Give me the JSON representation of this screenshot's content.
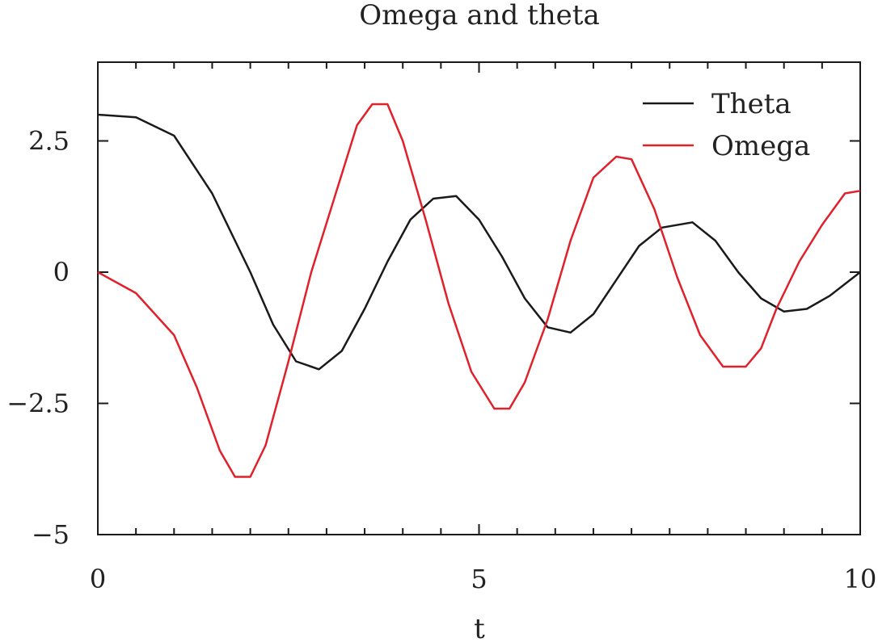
{
  "chart_data": {
    "type": "line",
    "title": "Omega and theta",
    "xlabel": "t",
    "ylabel": "",
    "xlim": [
      0,
      10
    ],
    "ylim": [
      -5,
      4
    ],
    "xticks": [
      0,
      5,
      10
    ],
    "xtick_labels": [
      "0",
      "5",
      "10"
    ],
    "yticks": [
      -5,
      -2.5,
      0,
      2.5
    ],
    "ytick_labels": [
      "−5",
      "−2.5",
      "0",
      "2.5"
    ],
    "grid": false,
    "legend_position": "top-right",
    "series": [
      {
        "name": "Theta",
        "color": "#1a1a1a",
        "x": [
          0,
          0.5,
          1.0,
          1.5,
          1.8,
          2.0,
          2.3,
          2.6,
          2.9,
          3.2,
          3.5,
          3.8,
          4.1,
          4.4,
          4.7,
          5.0,
          5.3,
          5.6,
          5.9,
          6.2,
          6.5,
          6.8,
          7.1,
          7.4,
          7.8,
          8.1,
          8.4,
          8.7,
          9.0,
          9.3,
          9.6,
          10.0
        ],
        "values": [
          3.0,
          2.95,
          2.6,
          1.5,
          0.6,
          0.0,
          -1.0,
          -1.7,
          -1.85,
          -1.5,
          -0.7,
          0.2,
          1.0,
          1.4,
          1.45,
          1.0,
          0.3,
          -0.5,
          -1.05,
          -1.15,
          -0.8,
          -0.15,
          0.5,
          0.85,
          0.95,
          0.6,
          0.0,
          -0.5,
          -0.75,
          -0.7,
          -0.45,
          0.0
        ]
      },
      {
        "name": "Omega",
        "color": "#e0202a",
        "x": [
          0,
          0.5,
          1.0,
          1.3,
          1.6,
          1.8,
          2.0,
          2.2,
          2.5,
          2.8,
          3.1,
          3.4,
          3.6,
          3.8,
          4.0,
          4.3,
          4.6,
          4.9,
          5.2,
          5.4,
          5.6,
          5.9,
          6.2,
          6.5,
          6.8,
          7.0,
          7.3,
          7.6,
          7.9,
          8.2,
          8.5,
          8.7,
          8.9,
          9.2,
          9.5,
          9.8,
          10.0
        ],
        "values": [
          0.0,
          -0.4,
          -1.2,
          -2.2,
          -3.4,
          -3.9,
          -3.9,
          -3.3,
          -1.7,
          0.0,
          1.4,
          2.8,
          3.2,
          3.2,
          2.5,
          1.0,
          -0.6,
          -1.9,
          -2.6,
          -2.6,
          -2.1,
          -0.9,
          0.6,
          1.8,
          2.2,
          2.15,
          1.2,
          -0.1,
          -1.2,
          -1.8,
          -1.8,
          -1.45,
          -0.7,
          0.2,
          0.9,
          1.5,
          1.55
        ]
      }
    ]
  }
}
